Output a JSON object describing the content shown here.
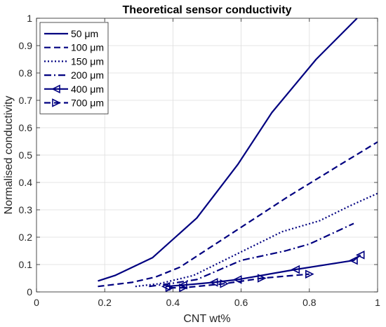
{
  "chart_data": {
    "type": "line",
    "title": "Theoretical sensor conductivity",
    "xlabel": "CNT wt%",
    "ylabel": "Normalised conductivity",
    "xlim": [
      0,
      1
    ],
    "ylim": [
      0,
      1
    ],
    "xticks": [
      0,
      0.2,
      0.4,
      0.6,
      0.8,
      1
    ],
    "yticks": [
      0,
      0.1,
      0.2,
      0.3,
      0.4,
      0.5,
      0.6,
      0.7,
      0.8,
      0.9,
      1
    ],
    "xtick_labels": [
      "0",
      "0.2",
      "0.4",
      "0.6",
      "0.8",
      "1"
    ],
    "ytick_labels": [
      "0",
      "0.1",
      "0.2",
      "0.3",
      "0.4",
      "0.5",
      "0.6",
      "0.7",
      "0.8",
      "0.9",
      "1"
    ],
    "grid": true,
    "legend_position": "top-left",
    "color": "#000080",
    "series": [
      {
        "name": "50 μm",
        "style": "solid",
        "marker": "none",
        "x": [
          0.18,
          0.23,
          0.34,
          0.47,
          0.59,
          0.69,
          0.82,
          0.94
        ],
        "y": [
          0.04,
          0.06,
          0.125,
          0.27,
          0.465,
          0.655,
          0.85,
          1.0
        ]
      },
      {
        "name": "100 μm",
        "style": "dashed",
        "marker": "none",
        "x": [
          0.18,
          0.28,
          0.35,
          0.42,
          0.58,
          0.74,
          0.91,
          1.0
        ],
        "y": [
          0.02,
          0.035,
          0.055,
          0.09,
          0.22,
          0.35,
          0.48,
          0.548
        ]
      },
      {
        "name": "150 μm",
        "style": "dotted",
        "marker": "none",
        "x": [
          0.29,
          0.36,
          0.46,
          0.59,
          0.72,
          0.83,
          0.92,
          1.0
        ],
        "y": [
          0.02,
          0.03,
          0.06,
          0.14,
          0.22,
          0.26,
          0.315,
          0.36
        ]
      },
      {
        "name": "200 μm",
        "style": "dashdot",
        "marker": "none",
        "x": [
          0.33,
          0.39,
          0.47,
          0.6,
          0.73,
          0.8,
          0.93
        ],
        "y": [
          0.02,
          0.03,
          0.045,
          0.115,
          0.15,
          0.175,
          0.25
        ]
      },
      {
        "name": "400 μm",
        "style": "solid",
        "marker": "triangle-left",
        "x": [
          0.38,
          0.43,
          0.52,
          0.59,
          0.76,
          0.93,
          0.95
        ],
        "y": [
          0.02,
          0.025,
          0.035,
          0.045,
          0.082,
          0.115,
          0.135
        ]
      },
      {
        "name": "700 μm",
        "style": "dashed",
        "marker": "triangle-right",
        "x": [
          0.39,
          0.43,
          0.55,
          0.66,
          0.8
        ],
        "y": [
          0.015,
          0.015,
          0.03,
          0.05,
          0.065
        ]
      }
    ]
  }
}
